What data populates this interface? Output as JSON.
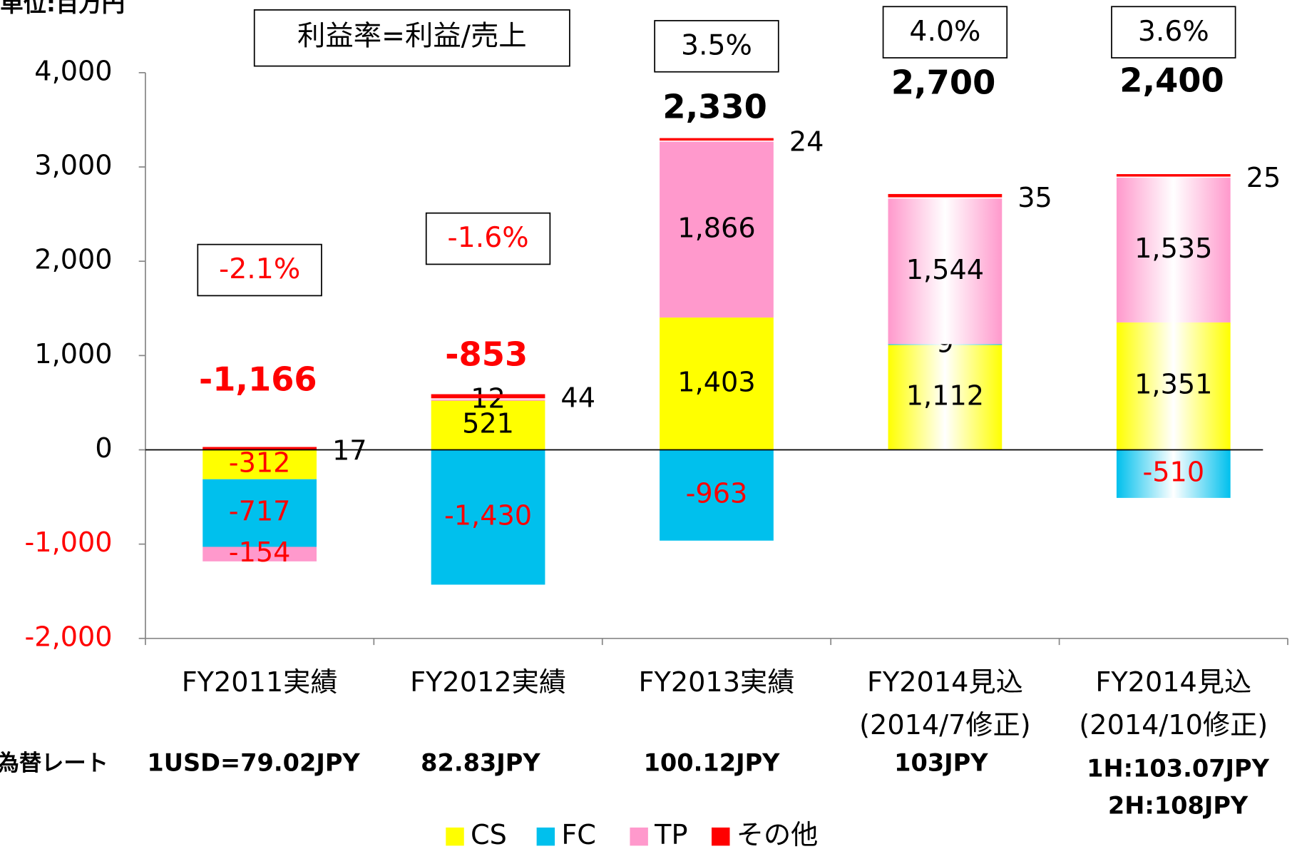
{
  "chart_data": {
    "type": "bar",
    "stacked": true,
    "unit_label": "単位:百万円",
    "formula_label": "利益率=利益/売上",
    "categories": [
      [
        "FY2011実績"
      ],
      [
        "FY2012実績"
      ],
      [
        "FY2013実績"
      ],
      [
        "FY2014見込",
        "(2014/7修正)"
      ],
      [
        "FY2014見込",
        "(2014/10修正)"
      ]
    ],
    "series": [
      {
        "name": "CS",
        "color": "#ffff00",
        "values": [
          -312,
          521,
          1403,
          1112,
          1351
        ],
        "value_labels": [
          "-312",
          "521",
          "1,403",
          "1,112",
          "1,351"
        ]
      },
      {
        "name": "FC",
        "color": "#00c0ed",
        "values": [
          -717,
          -1430,
          -963,
          9,
          -510
        ],
        "value_labels": [
          "-717",
          "-1,430",
          "-963",
          "9",
          "-510"
        ]
      },
      {
        "name": "TP",
        "color": "#ff99cc",
        "values": [
          -154,
          12,
          1866,
          1544,
          1535
        ],
        "value_labels": [
          "-154",
          "12",
          "1,866",
          "1,544",
          "1,535"
        ]
      },
      {
        "name": "その他",
        "color": "#ff0000",
        "values": [
          17,
          44,
          24,
          35,
          25
        ]
      }
    ],
    "totals": {
      "values": [
        -1166,
        -853,
        2330,
        2700,
        2400
      ],
      "value_labels": [
        "-1,166",
        "-853",
        "2,330",
        "2,700",
        "2,400"
      ]
    },
    "margins": {
      "values": [
        -2.1,
        -1.6,
        3.5,
        4.0,
        3.6
      ],
      "value_labels": [
        "-2.1%",
        "-1.6%",
        "3.5%",
        "4.0%",
        "3.6%"
      ]
    },
    "exchange_rate": {
      "label": "為替レート",
      "values": [
        [
          "1USD=79.02JPY"
        ],
        [
          "82.83JPY"
        ],
        [
          "100.12JPY"
        ],
        [
          "103JPY"
        ],
        [
          "1H:103.07JPY",
          "2H:108JPY"
        ]
      ]
    },
    "ylim": [
      -2000,
      4000
    ],
    "yticks": [
      {
        "value": -2000,
        "label": "-2,000"
      },
      {
        "value": -1000,
        "label": "-1,000"
      },
      0,
      {
        "value": 1000,
        "label": "1,000"
      },
      {
        "value": 2000,
        "label": "2,000"
      },
      {
        "value": 3000,
        "label": "3,000"
      },
      {
        "value": 4000,
        "label": "4,000"
      }
    ],
    "legend": "bottom"
  }
}
